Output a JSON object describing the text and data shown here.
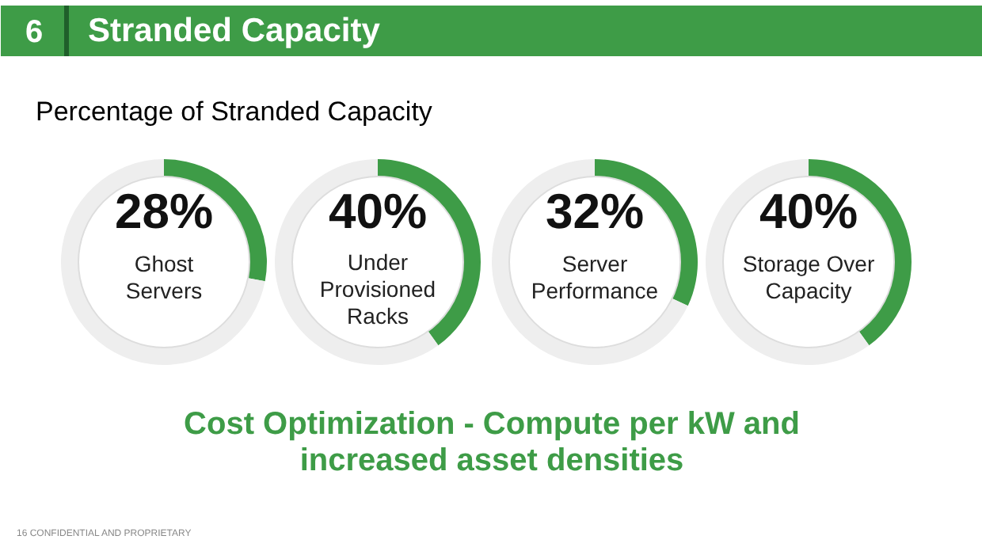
{
  "chart_data": [
    {
      "type": "other",
      "title": "Stranded Capacity",
      "subtitle": "Percentage of Stranded Capacity",
      "annotations": [
        "6",
        "Cost Optimization - Compute per kW and\nincreased asset densities",
        "16  CONFIDENTIAL AND PROPRIETARY"
      ]
    },
    {
      "type": "donut",
      "title": "Ghost\nServers",
      "categories": [
        null,
        null
      ],
      "values": [
        28,
        72
      ],
      "colors": [
        "#3e9c47",
        "#eeeeee"
      ],
      "value_labels": [
        "28%",
        null
      ]
    },
    {
      "type": "donut",
      "title": "Under\nProvisioned\nRacks",
      "categories": [
        null,
        null
      ],
      "values": [
        40,
        60
      ],
      "colors": [
        "#3e9c47",
        "#eeeeee"
      ],
      "value_labels": [
        "40%",
        null
      ]
    },
    {
      "type": "donut",
      "title": "Server\nPerformance",
      "categories": [
        null,
        null
      ],
      "values": [
        32,
        68
      ],
      "colors": [
        "#3e9c47",
        "#eeeeee"
      ],
      "value_labels": [
        "32%",
        null
      ]
    },
    {
      "type": "donut",
      "title": "Storage Over\nCapacity",
      "categories": [
        null,
        null
      ],
      "values": [
        40,
        60
      ],
      "colors": [
        "#3e9c47",
        "#eeeeee"
      ],
      "value_labels": [
        "40%",
        null
      ]
    }
  ]
}
